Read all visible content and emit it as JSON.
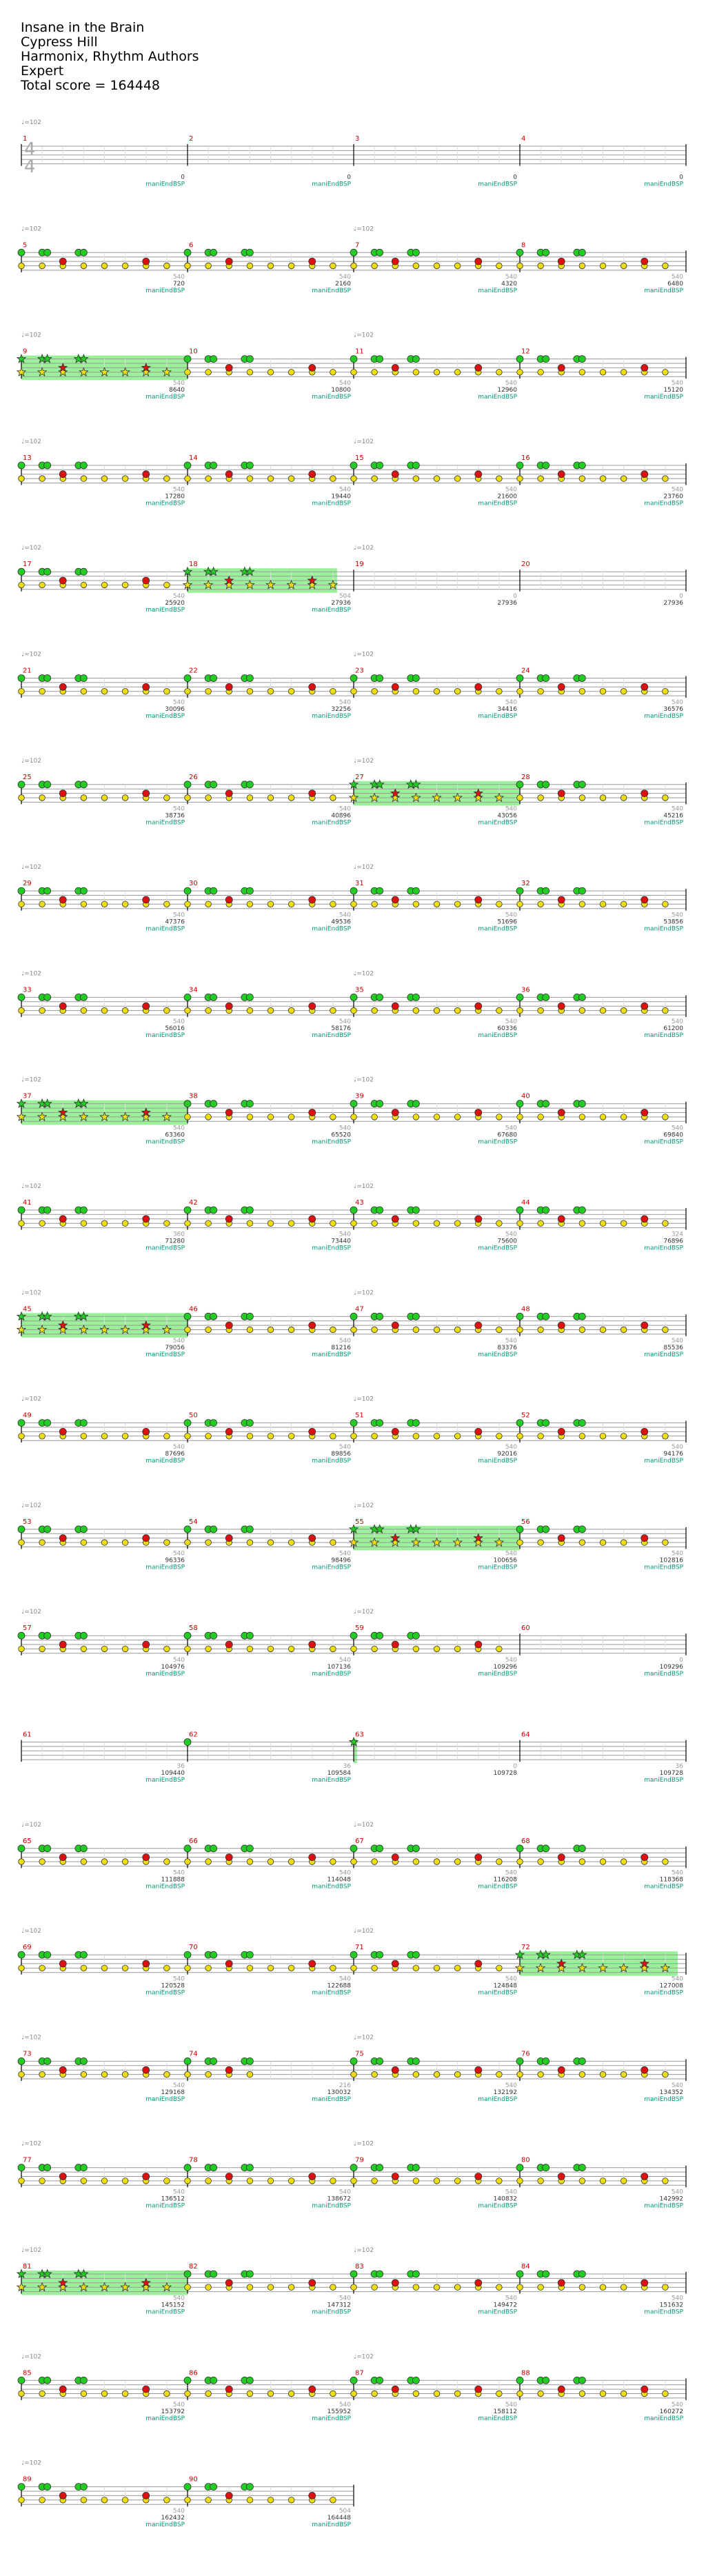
{
  "song": {
    "title": "Insane in the Brain",
    "artist": "Cypress Hill",
    "charter": "Harmonix, Rhythm Authors",
    "difficulty": "Expert",
    "total_score_label": "Total score = ",
    "total_score": "164448"
  },
  "labels": {
    "tempo": "♩=102",
    "fill_marker": "maniEndBSP"
  },
  "colors": {
    "staff": "#999999",
    "barline": "#000000",
    "measure_number": "#cc0000",
    "score_text": "#333333",
    "fill_text": "#009977",
    "tempo_text": "#888888",
    "starpower": "#88ee88",
    "note_green": "#22cc22",
    "note_red": "#dd1111",
    "note_yellow": "#eedd11",
    "note_stroke": "#333333"
  },
  "icons": {
    "star_note": "star-icon",
    "tempo_marker": "quarter-note-icon"
  },
  "measure_count": 90,
  "rows": [
    {
      "measures": [
        1,
        2,
        3,
        4
      ],
      "tempo": true,
      "scores": [
        "0",
        "0",
        "0",
        "0"
      ],
      "sub": [
        "",
        "",
        "",
        ""
      ],
      "fills": [
        true,
        true,
        true,
        true
      ],
      "pattern": "empty",
      "sp": []
    },
    {
      "measures": [
        5,
        6,
        7,
        8
      ],
      "tempo": true,
      "scores": [
        "720",
        "2160",
        "4320",
        "6480"
      ],
      "sub": [
        "540",
        "540",
        "540",
        "540"
      ],
      "fills": [
        true,
        true,
        true,
        true
      ],
      "pattern": "groove",
      "sp": []
    },
    {
      "measures": [
        9,
        10,
        11,
        12
      ],
      "tempo": true,
      "scores": [
        "8640",
        "10800",
        "12960",
        "15120"
      ],
      "sub": [
        "540",
        "540",
        "540",
        "540"
      ],
      "fills": [
        true,
        true,
        true,
        true
      ],
      "pattern": "groove",
      "sp": [
        [
          0,
          1
        ]
      ]
    },
    {
      "measures": [
        13,
        14,
        15,
        16
      ],
      "tempo": true,
      "scores": [
        "17280",
        "19440",
        "21600",
        "23760"
      ],
      "sub": [
        "540",
        "540",
        "540",
        "540"
      ],
      "fills": [
        true,
        true,
        true,
        true
      ],
      "pattern": "groove",
      "sp": []
    },
    {
      "measures": [
        17,
        18,
        19,
        20
      ],
      "tempo": true,
      "scores": [
        "25920",
        "27936",
        "27936",
        "27936"
      ],
      "sub": [
        "540",
        "504",
        "0",
        "0"
      ],
      "fills": [
        true,
        true,
        false,
        false
      ],
      "pattern": "half",
      "sp": [
        [
          1,
          1.9
        ]
      ]
    },
    {
      "measures": [
        21,
        22,
        23,
        24
      ],
      "tempo": true,
      "scores": [
        "30096",
        "32256",
        "34416",
        "36576"
      ],
      "sub": [
        "540",
        "540",
        "540",
        "540"
      ],
      "fills": [
        true,
        true,
        true,
        true
      ],
      "pattern": "groove",
      "sp": []
    },
    {
      "measures": [
        25,
        26,
        27,
        28
      ],
      "tempo": true,
      "scores": [
        "38736",
        "40896",
        "43056",
        "45216"
      ],
      "sub": [
        "540",
        "540",
        "540",
        "540"
      ],
      "fills": [
        true,
        true,
        true,
        true
      ],
      "pattern": "groove",
      "sp": [
        [
          2,
          3
        ]
      ]
    },
    {
      "measures": [
        29,
        30,
        31,
        32
      ],
      "tempo": true,
      "scores": [
        "47376",
        "49536",
        "51696",
        "53856"
      ],
      "sub": [
        "540",
        "540",
        "540",
        "540"
      ],
      "fills": [
        true,
        true,
        true,
        true
      ],
      "pattern": "groove",
      "sp": []
    },
    {
      "measures": [
        33,
        34,
        35,
        36
      ],
      "tempo": true,
      "scores": [
        "56016",
        "58176",
        "60336",
        "61200"
      ],
      "sub": [
        "540",
        "540",
        "540",
        "540"
      ],
      "fills": [
        true,
        true,
        true,
        true
      ],
      "pattern": "groove",
      "sp": []
    },
    {
      "measures": [
        37,
        38,
        39,
        40
      ],
      "tempo": true,
      "scores": [
        "63360",
        "65520",
        "67680",
        "69840"
      ],
      "sub": [
        "540",
        "540",
        "540",
        "540"
      ],
      "fills": [
        true,
        true,
        true,
        true
      ],
      "pattern": "groove",
      "sp": [
        [
          0,
          1
        ]
      ]
    },
    {
      "measures": [
        41,
        42,
        43,
        44
      ],
      "tempo": true,
      "scores": [
        "71280",
        "73440",
        "75600",
        "76896"
      ],
      "sub": [
        "360",
        "540",
        "540",
        "324"
      ],
      "fills": [
        true,
        true,
        true,
        true
      ],
      "pattern": "groove",
      "sp": []
    },
    {
      "measures": [
        45,
        46,
        47,
        48
      ],
      "tempo": true,
      "scores": [
        "79056",
        "81216",
        "83376",
        "85536"
      ],
      "sub": [
        "540",
        "540",
        "540",
        "540"
      ],
      "fills": [
        true,
        true,
        true,
        true
      ],
      "pattern": "groove",
      "sp": [
        [
          0,
          1
        ]
      ]
    },
    {
      "measures": [
        49,
        50,
        51,
        52
      ],
      "tempo": true,
      "scores": [
        "87696",
        "89856",
        "92016",
        "94176"
      ],
      "sub": [
        "540",
        "540",
        "540",
        "540"
      ],
      "fills": [
        true,
        true,
        true,
        true
      ],
      "pattern": "groove",
      "sp": []
    },
    {
      "measures": [
        53,
        54,
        55,
        56
      ],
      "tempo": true,
      "scores": [
        "96336",
        "98496",
        "100656",
        "102816"
      ],
      "sub": [
        "540",
        "540",
        "540",
        "540"
      ],
      "fills": [
        true,
        true,
        true,
        true
      ],
      "pattern": "groove",
      "sp": [
        [
          2,
          3
        ]
      ]
    },
    {
      "measures": [
        57,
        58,
        59,
        60
      ],
      "tempo": true,
      "scores": [
        "104976",
        "107136",
        "109296",
        "109296"
      ],
      "sub": [
        "540",
        "540",
        "540",
        "0"
      ],
      "fills": [
        true,
        true,
        true,
        true
      ],
      "pattern": "three",
      "sp": []
    },
    {
      "measures": [
        61,
        62,
        63,
        64
      ],
      "tempo": false,
      "scores": [
        "109440",
        "109584",
        "109728",
        "109728"
      ],
      "sub": [
        "36",
        "36",
        "0",
        "36"
      ],
      "fills": [
        true,
        true,
        false,
        true
      ],
      "pattern": "sparse",
      "sp": [
        [
          2,
          2.02
        ]
      ]
    },
    {
      "measures": [
        65,
        66,
        67,
        68
      ],
      "tempo": true,
      "scores": [
        "111888",
        "114048",
        "116208",
        "118368"
      ],
      "sub": [
        "540",
        "540",
        "540",
        "540"
      ],
      "fills": [
        true,
        true,
        true,
        true
      ],
      "pattern": "groove",
      "sp": []
    },
    {
      "measures": [
        69,
        70,
        71,
        72
      ],
      "tempo": true,
      "scores": [
        "120528",
        "122688",
        "124848",
        "127008"
      ],
      "sub": [
        "540",
        "540",
        "540",
        "540"
      ],
      "fills": [
        true,
        true,
        true,
        true
      ],
      "pattern": "groove",
      "sp": [
        [
          3,
          3.95
        ]
      ]
    },
    {
      "measures": [
        73,
        74,
        75,
        76
      ],
      "tempo": true,
      "scores": [
        "129168",
        "130032",
        "132192",
        "134352"
      ],
      "sub": [
        "540",
        "216",
        "540",
        "540"
      ],
      "fills": [
        true,
        true,
        true,
        true
      ],
      "pattern": "groove2",
      "sp": []
    },
    {
      "measures": [
        77,
        78,
        79,
        80
      ],
      "tempo": true,
      "scores": [
        "136512",
        "138672",
        "140832",
        "142992"
      ],
      "sub": [
        "540",
        "540",
        "540",
        "540"
      ],
      "fills": [
        true,
        true,
        true,
        true
      ],
      "pattern": "groove",
      "sp": []
    },
    {
      "measures": [
        81,
        82,
        83,
        84
      ],
      "tempo": true,
      "scores": [
        "145152",
        "147312",
        "149472",
        "151632"
      ],
      "sub": [
        "540",
        "540",
        "540",
        "540"
      ],
      "fills": [
        true,
        true,
        true,
        true
      ],
      "pattern": "groove",
      "sp": [
        [
          0,
          1
        ]
      ]
    },
    {
      "measures": [
        85,
        86,
        87,
        88
      ],
      "tempo": true,
      "scores": [
        "153792",
        "155952",
        "158112",
        "160272"
      ],
      "sub": [
        "540",
        "540",
        "540",
        "540"
      ],
      "fills": [
        true,
        true,
        true,
        true
      ],
      "pattern": "groove",
      "sp": []
    },
    {
      "measures": [
        89,
        90
      ],
      "tempo": true,
      "scores": [
        "162432",
        "164448"
      ],
      "sub": [
        "540",
        "504"
      ],
      "fills": [
        true,
        true
      ],
      "pattern": "groove",
      "sp": []
    }
  ]
}
